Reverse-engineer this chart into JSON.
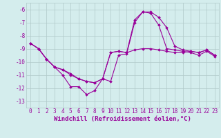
{
  "x": [
    0,
    1,
    2,
    3,
    4,
    5,
    6,
    7,
    8,
    9,
    10,
    11,
    12,
    13,
    14,
    15,
    16,
    17,
    18,
    19,
    20,
    21,
    22,
    23
  ],
  "line1": [
    -8.6,
    -9.0,
    -9.8,
    -10.4,
    -10.6,
    -11.0,
    -11.3,
    -11.5,
    -11.6,
    -11.3,
    -9.3,
    -9.2,
    -9.3,
    -9.1,
    -9.0,
    -9.0,
    -9.1,
    -9.2,
    -9.3,
    -9.3,
    -9.2,
    -9.3,
    -9.1,
    -9.5
  ],
  "line2": [
    -8.6,
    -9.0,
    -9.8,
    -10.4,
    -11.0,
    -11.9,
    -11.9,
    -12.5,
    -12.2,
    -11.3,
    -11.5,
    -9.5,
    -9.4,
    -7.0,
    -6.2,
    -6.3,
    -7.2,
    -9.0,
    -9.1,
    -9.2,
    -9.3,
    -9.5,
    -9.2,
    -9.6
  ],
  "line3": [
    -8.6,
    -9.0,
    -9.8,
    -10.4,
    -10.6,
    -10.9,
    -11.3,
    -11.5,
    -11.6,
    -11.3,
    -9.3,
    -9.2,
    -9.3,
    -6.8,
    -6.2,
    -6.2,
    -6.6,
    -7.4,
    -8.8,
    -9.1,
    -9.2,
    -9.3,
    -9.1,
    -9.5
  ],
  "line_color": "#990099",
  "bg_color": "#d4eded",
  "grid_color": "#b0c8c8",
  "xlabel": "Windchill (Refroidissement éolien,°C)",
  "ylim": [
    -13.5,
    -5.5
  ],
  "xlim": [
    -0.5,
    23.5
  ],
  "yticks": [
    -13,
    -12,
    -11,
    -10,
    -9,
    -8,
    -7,
    -6
  ],
  "xticks": [
    0,
    1,
    2,
    3,
    4,
    5,
    6,
    7,
    8,
    9,
    10,
    11,
    12,
    13,
    14,
    15,
    16,
    17,
    18,
    19,
    20,
    21,
    22,
    23
  ],
  "tick_fontsize": 5.5,
  "label_fontsize": 6.5
}
